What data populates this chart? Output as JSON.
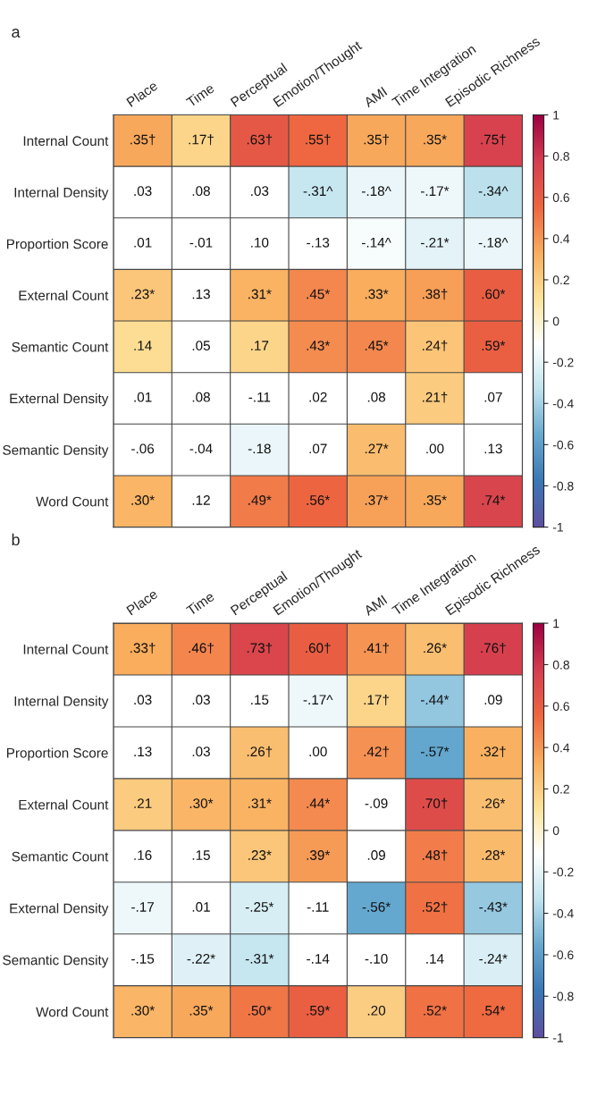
{
  "chart_data": [
    {
      "type": "heatmap",
      "title": "a",
      "categories": [
        "Place",
        "Time",
        "Perceptual",
        "Emotion/Thought",
        "AMI",
        "Time Integration",
        "Episodic Richness"
      ],
      "y_categories": [
        "Internal Count",
        "Internal Density",
        "Proportion Score",
        "External Count",
        "Semantic Count",
        "External Density",
        "Semantic Density",
        "Word Count"
      ],
      "cells": [
        [
          0.35,
          0.17,
          0.63,
          0.55,
          0.35,
          0.35,
          0.75
        ],
        [
          null,
          null,
          null,
          -0.31,
          -0.18,
          -0.17,
          -0.34
        ],
        [
          null,
          null,
          null,
          null,
          -0.14,
          -0.21,
          -0.18
        ],
        [
          0.23,
          null,
          0.31,
          0.45,
          0.33,
          0.38,
          0.6
        ],
        [
          0.14,
          null,
          0.17,
          0.43,
          0.45,
          0.24,
          0.59
        ],
        [
          null,
          null,
          null,
          null,
          null,
          0.21,
          null
        ],
        [
          null,
          null,
          -0.18,
          null,
          0.27,
          null,
          null
        ],
        [
          0.3,
          null,
          0.49,
          0.56,
          0.37,
          0.35,
          0.74
        ]
      ],
      "cell_labels": [
        [
          ".35†",
          ".17†",
          ".63†",
          ".55†",
          ".35†",
          ".35*",
          ".75†"
        ],
        [
          ".03",
          ".08",
          ".03",
          "-.31^",
          "-.18^",
          "-.17*",
          "-.34^"
        ],
        [
          ".01",
          "-.01",
          ".10",
          "-.13",
          "-.14^",
          "-.21*",
          "-.18^"
        ],
        [
          ".23*",
          ".13",
          ".31*",
          ".45*",
          ".33*",
          ".38†",
          ".60*"
        ],
        [
          ".14",
          ".05",
          ".17",
          ".43*",
          ".45*",
          ".24†",
          ".59*"
        ],
        [
          ".01",
          ".08",
          "-.11",
          ".02",
          ".08",
          ".21†",
          ".07"
        ],
        [
          "-.06",
          "-.04",
          "-.18",
          ".07",
          ".27*",
          ".00",
          ".13"
        ],
        [
          ".30*",
          ".12",
          ".49*",
          ".56*",
          ".37*",
          ".35*",
          ".74*"
        ]
      ],
      "clim": [
        -1,
        1
      ],
      "cticks": [
        {
          "value": -1,
          "label": "-1"
        },
        {
          "value": -0.8,
          "label": "-0.8"
        },
        {
          "value": -0.6,
          "label": "-0.6"
        },
        {
          "value": -0.4,
          "label": "-0.4"
        },
        {
          "value": -0.2,
          "label": "-0.2"
        },
        0,
        0.2,
        0.4,
        0.6,
        0.8,
        1
      ],
      "grid": true
    },
    {
      "type": "heatmap",
      "title": "b",
      "categories": [
        "Place",
        "Time",
        "Perceptual",
        "Emotion/Thought",
        "AMI",
        "Time Integration",
        "Episodic Richness"
      ],
      "y_categories": [
        "Internal Count",
        "Internal Density",
        "Proportion Score",
        "External Count",
        "Semantic Count",
        "External Density",
        "Semantic Density",
        "Word Count"
      ],
      "cells": [
        [
          0.33,
          0.46,
          0.73,
          0.6,
          0.41,
          0.26,
          0.76
        ],
        [
          null,
          null,
          null,
          -0.17,
          0.17,
          -0.44,
          null
        ],
        [
          null,
          null,
          0.26,
          null,
          0.42,
          -0.57,
          0.32
        ],
        [
          0.21,
          0.3,
          0.31,
          0.44,
          null,
          0.7,
          0.26
        ],
        [
          null,
          null,
          0.23,
          0.39,
          null,
          0.48,
          0.28
        ],
        [
          -0.17,
          null,
          -0.25,
          null,
          -0.56,
          0.52,
          -0.43
        ],
        [
          null,
          -0.22,
          -0.31,
          null,
          null,
          null,
          -0.24
        ],
        [
          0.3,
          0.35,
          0.5,
          0.59,
          0.2,
          0.52,
          0.54
        ]
      ],
      "cell_labels": [
        [
          ".33†",
          ".46†",
          ".73†",
          ".60†",
          ".41†",
          ".26*",
          ".76†"
        ],
        [
          ".03",
          ".03",
          ".15",
          "-.17^",
          ".17†",
          "-.44*",
          ".09"
        ],
        [
          ".13",
          ".03",
          ".26†",
          ".00",
          ".42†",
          "-.57*",
          ".32†"
        ],
        [
          ".21",
          ".30*",
          ".31*",
          ".44*",
          "-.09",
          ".70†",
          ".26*"
        ],
        [
          ".16",
          ".15",
          ".23*",
          ".39*",
          ".09",
          ".48†",
          ".28*"
        ],
        [
          "-.17",
          ".01",
          "-.25*",
          "-.11",
          "-.56*",
          ".52†",
          "-.43*"
        ],
        [
          "-.15",
          "-.22*",
          "-.31*",
          "-.14",
          "-.10",
          ".14",
          "-.24*"
        ],
        [
          ".30*",
          ".35*",
          ".50*",
          ".59*",
          ".20",
          ".52*",
          ".54*"
        ]
      ],
      "clim": [
        -1,
        1
      ],
      "cticks": [
        {
          "value": -1,
          "label": "-1"
        },
        {
          "value": -0.8,
          "label": "-0.8"
        },
        {
          "value": -0.6,
          "label": "-0.6"
        },
        {
          "value": -0.4,
          "label": "-0.4"
        },
        {
          "value": -0.2,
          "label": "-0.2"
        },
        0,
        0.2,
        0.4,
        0.6,
        0.8,
        1
      ],
      "grid": true
    }
  ]
}
